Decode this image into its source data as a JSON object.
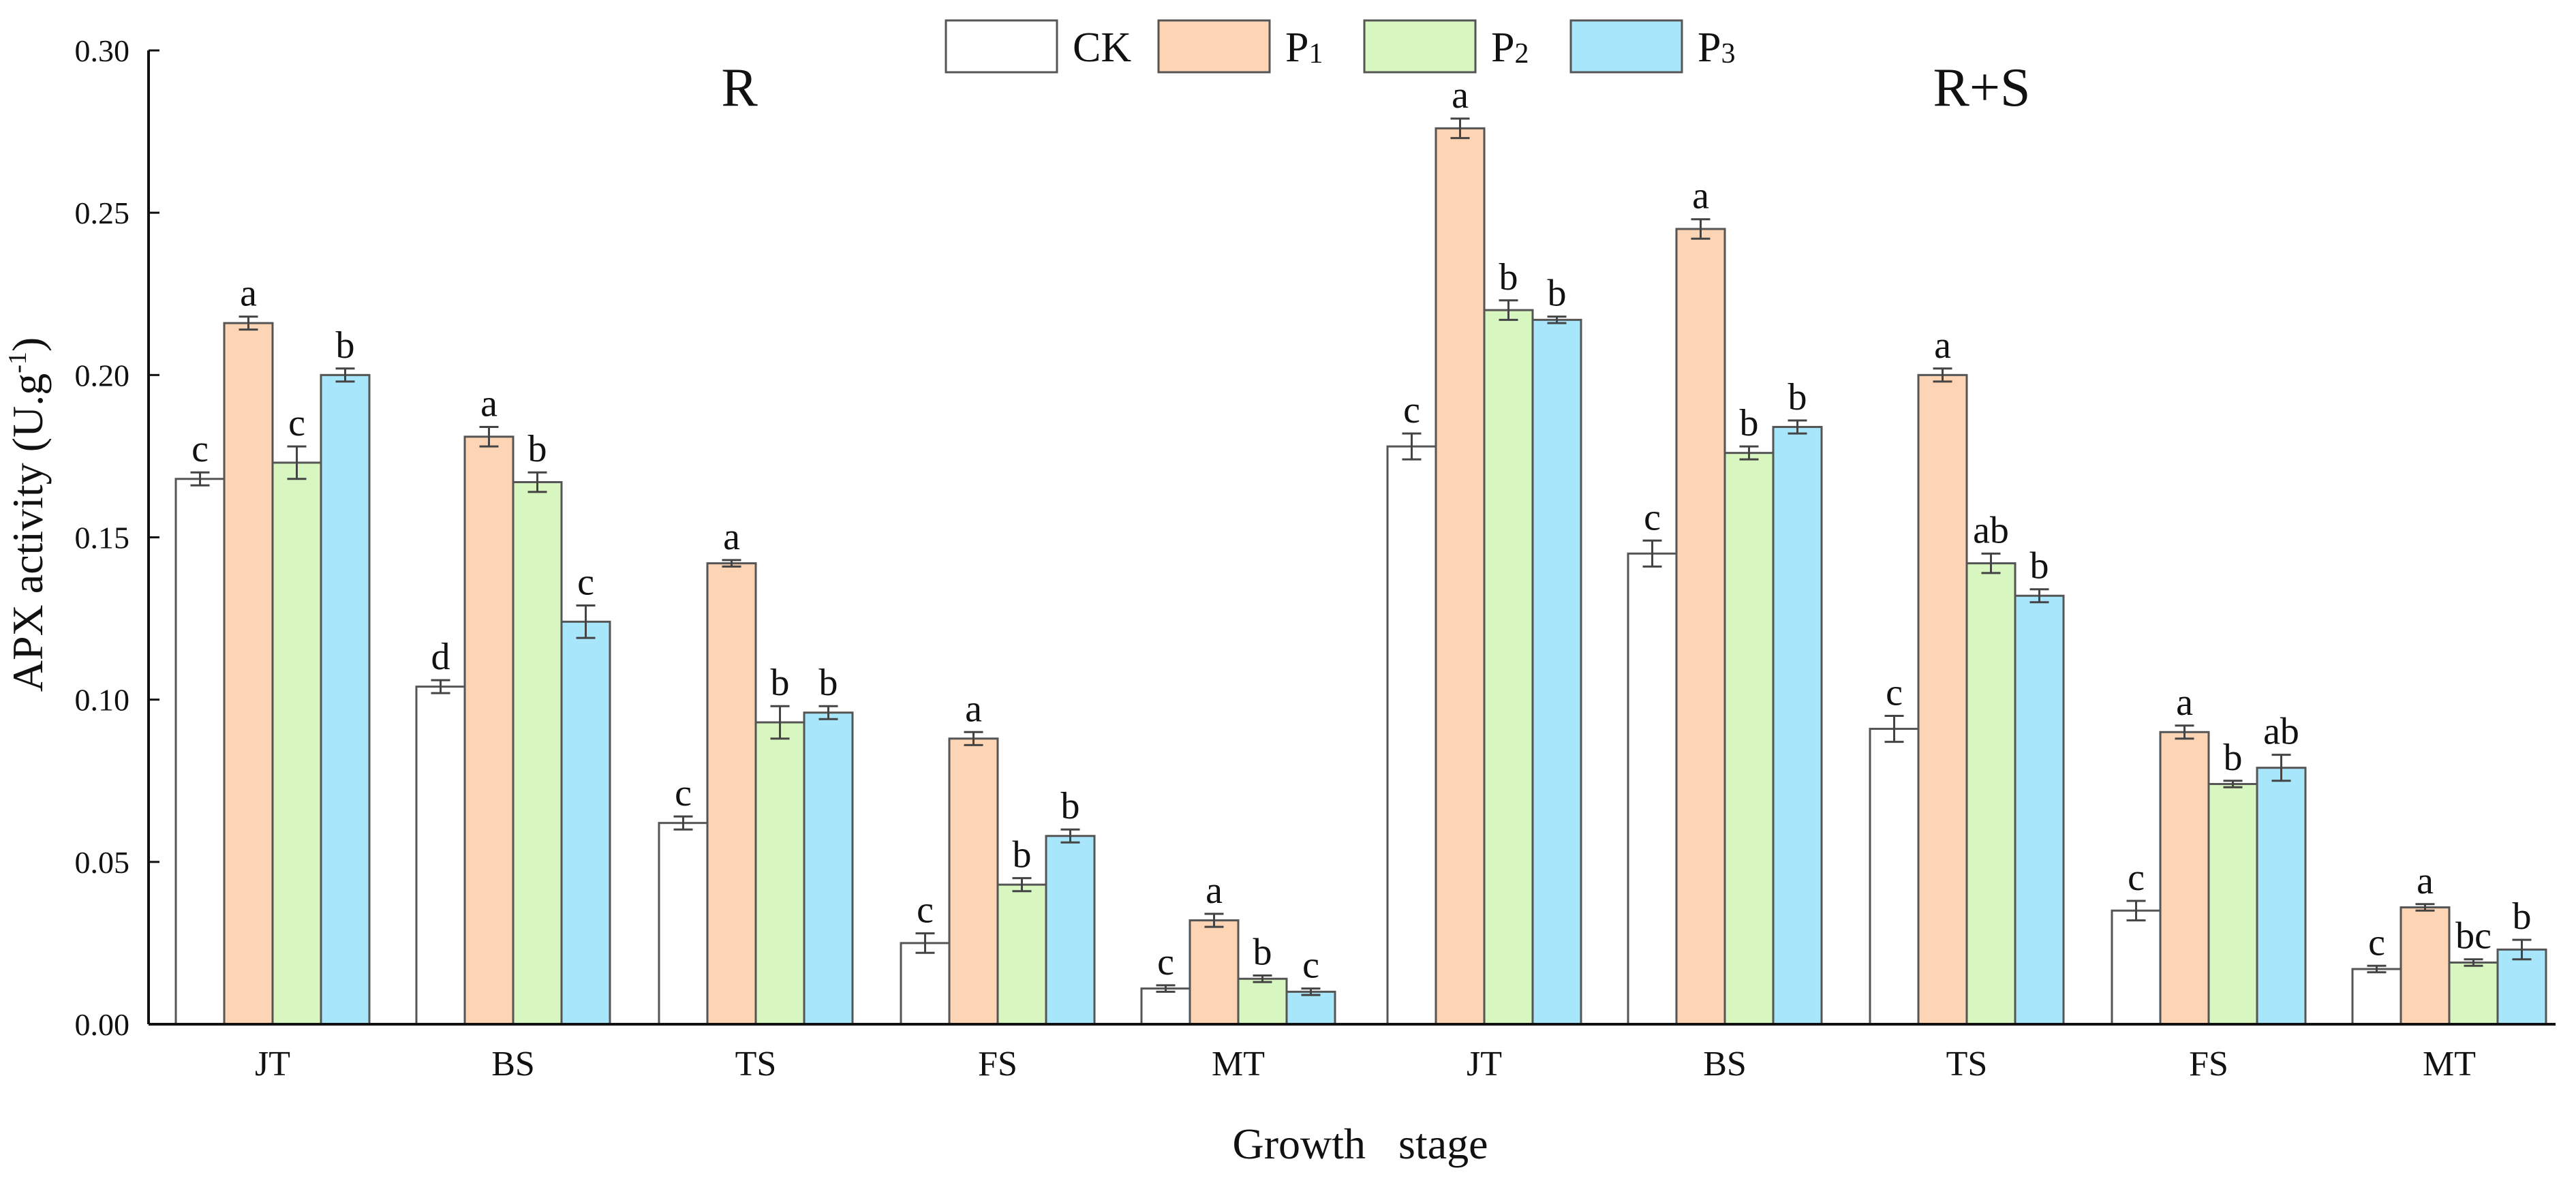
{
  "chart_data": {
    "type": "bar",
    "ylabel_base": "APX activity (U.g",
    "ylabel_sup": "-1",
    "ylabel_end": ")",
    "xlabel": "Growth   stage",
    "ylim": [
      0,
      0.3
    ],
    "yticks": [
      "0.00",
      "0.05",
      "0.10",
      "0.15",
      "0.20",
      "0.25",
      "0.30"
    ],
    "legend": {
      "placement": "top-center",
      "entries": [
        {
          "main": "CK",
          "sub": ""
        },
        {
          "main": "P",
          "sub": "1"
        },
        {
          "main": "P",
          "sub": "2"
        },
        {
          "main": "P",
          "sub": "3"
        }
      ]
    },
    "series_colors": [
      "#ffffff",
      "#fdd4b4",
      "#d8f6c0",
      "#a8e6fb"
    ],
    "panels": [
      {
        "title": "R",
        "categories": [
          "JT",
          "BS",
          "TS",
          "FS",
          "MT"
        ],
        "series": [
          {
            "name": "CK",
            "values": [
              0.168,
              0.104,
              0.062,
              0.025,
              0.011
            ],
            "errors": [
              0.002,
              0.002,
              0.002,
              0.003,
              0.001
            ],
            "letters": [
              "c",
              "d",
              "c",
              "c",
              "c"
            ]
          },
          {
            "name": "P1",
            "values": [
              0.216,
              0.181,
              0.142,
              0.088,
              0.032
            ],
            "errors": [
              0.002,
              0.003,
              0.001,
              0.002,
              0.002
            ],
            "letters": [
              "a",
              "a",
              "a",
              "a",
              "a"
            ]
          },
          {
            "name": "P2",
            "values": [
              0.173,
              0.167,
              0.093,
              0.043,
              0.014
            ],
            "errors": [
              0.005,
              0.003,
              0.005,
              0.002,
              0.001
            ],
            "letters": [
              "c",
              "b",
              "b",
              "b",
              "b"
            ]
          },
          {
            "name": "P3",
            "values": [
              0.2,
              0.124,
              0.096,
              0.058,
              0.01
            ],
            "errors": [
              0.002,
              0.005,
              0.002,
              0.002,
              0.001
            ],
            "letters": [
              "b",
              "c",
              "b",
              "b",
              "c"
            ]
          }
        ]
      },
      {
        "title": "R+S",
        "categories": [
          "JT",
          "BS",
          "TS",
          "FS",
          "MT"
        ],
        "series": [
          {
            "name": "CK",
            "values": [
              0.178,
              0.145,
              0.091,
              0.035,
              0.017
            ],
            "errors": [
              0.004,
              0.004,
              0.004,
              0.003,
              0.001
            ],
            "letters": [
              "c",
              "c",
              "c",
              "c",
              "c"
            ]
          },
          {
            "name": "P1",
            "values": [
              0.276,
              0.245,
              0.2,
              0.09,
              0.036
            ],
            "errors": [
              0.003,
              0.003,
              0.002,
              0.002,
              0.001
            ],
            "letters": [
              "a",
              "a",
              "a",
              "a",
              "a"
            ]
          },
          {
            "name": "P2",
            "values": [
              0.22,
              0.176,
              0.142,
              0.074,
              0.019
            ],
            "errors": [
              0.003,
              0.002,
              0.003,
              0.001,
              0.001
            ],
            "letters": [
              "b",
              "b",
              "ab",
              "b",
              "bc"
            ]
          },
          {
            "name": "P3",
            "values": [
              0.217,
              0.184,
              0.132,
              0.079,
              0.023
            ],
            "errors": [
              0.001,
              0.002,
              0.002,
              0.004,
              0.003
            ],
            "letters": [
              "b",
              "b",
              "b",
              "ab",
              "b"
            ]
          }
        ]
      }
    ]
  }
}
